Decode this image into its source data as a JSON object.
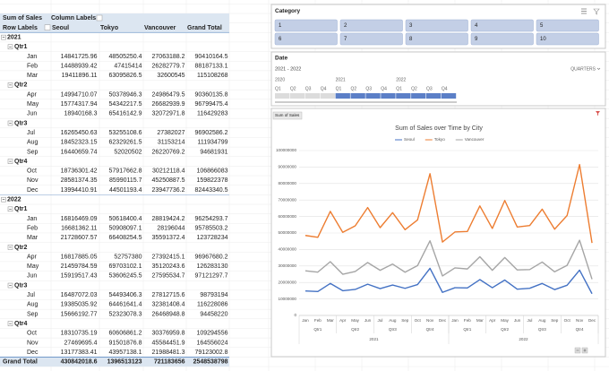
{
  "pivot_table": {
    "corner": "Sum of Sales",
    "column_labels": "Column Labels",
    "row_labels": "Row Labels",
    "columns": [
      "Seoul",
      "Tokyo",
      "Vancouver",
      "Grand Total"
    ],
    "years": [
      {
        "label": "2021",
        "quarters": [
          {
            "label": "Qtr1",
            "months": [
              {
                "label": "Jan",
                "values": [
                  14841725.96,
                  48505250.4,
                  27063188.2,
                  90410164.5
                ]
              },
              {
                "label": "Feb",
                "values": [
                  14488939.42,
                  47415414,
                  26282779.7,
                  88187133.1
                ]
              },
              {
                "label": "Mar",
                "values": [
                  19411896.11,
                  63095826.5,
                  32600545,
                  115108268
                ]
              }
            ]
          },
          {
            "label": "Qtr2",
            "months": [
              {
                "label": "Apr",
                "values": [
                  14994710.07,
                  50378946.3,
                  24986479.5,
                  90360135.8
                ]
              },
              {
                "label": "May",
                "values": [
                  15774317.94,
                  54342217.5,
                  26682939.9,
                  96799475.4
                ]
              },
              {
                "label": "Jun",
                "values": [
                  18940168.3,
                  65416142.9,
                  32072971.8,
                  116429283
                ]
              }
            ]
          },
          {
            "label": "Qtr3",
            "months": [
              {
                "label": "Jul",
                "values": [
                  16265450.63,
                  53255108.6,
                  27382027,
                  96902586.2
                ]
              },
              {
                "label": "Aug",
                "values": [
                  18452323.15,
                  62329261.5,
                  31153214,
                  111934799
                ]
              },
              {
                "label": "Sep",
                "values": [
                  16440659.74,
                  52020502,
                  26220769.2,
                  94681931
                ]
              }
            ]
          },
          {
            "label": "Qtr4",
            "months": [
              {
                "label": "Oct",
                "values": [
                  18736301.42,
                  57917662.8,
                  30212118.4,
                  106866083
                ]
              },
              {
                "label": "Nov",
                "values": [
                  28581374.35,
                  85990115.7,
                  45250887.5,
                  159822378
                ]
              },
              {
                "label": "Dec",
                "values": [
                  13994410.91,
                  44501193.4,
                  23947736.2,
                  82443340.5
                ]
              }
            ]
          }
        ]
      },
      {
        "label": "2022",
        "quarters": [
          {
            "label": "Qtr1",
            "months": [
              {
                "label": "Jan",
                "values": [
                  16816469.09,
                  50618400.4,
                  28819424.2,
                  96254293.7
                ]
              },
              {
                "label": "Feb",
                "values": [
                  16681362.11,
                  50908097.1,
                  28196044,
                  95785503.2
                ]
              },
              {
                "label": "Mar",
                "values": [
                  21728607.57,
                  66408254.5,
                  35591372.4,
                  123728234
                ]
              }
            ]
          },
          {
            "label": "Qtr2",
            "months": [
              {
                "label": "Apr",
                "values": [
                  16817885.05,
                  52757380,
                  27392415.1,
                  96967680.2
                ]
              },
              {
                "label": "May",
                "values": [
                  21459784.59,
                  69703102.1,
                  35120243.6,
                  126283130
                ]
              },
              {
                "label": "Jun",
                "values": [
                  15919517.43,
                  53606245.5,
                  27595534.7,
                  97121297.7
                ]
              }
            ]
          },
          {
            "label": "Qtr3",
            "months": [
              {
                "label": "Jul",
                "values": [
                  16487072.03,
                  54493406.3,
                  27812715.6,
                  98793194
                ]
              },
              {
                "label": "Aug",
                "values": [
                  19385035.92,
                  64461641.4,
                  32381408.4,
                  116228086
                ]
              },
              {
                "label": "Sep",
                "values": [
                  15666192.77,
                  52323078.3,
                  26468948.8,
                  94458220
                ]
              }
            ]
          },
          {
            "label": "Qtr4",
            "months": [
              {
                "label": "Oct",
                "values": [
                  18310735.19,
                  60606861.2,
                  30376959.8,
                  109294556
                ]
              },
              {
                "label": "Nov",
                "values": [
                  27469695.4,
                  91501876.8,
                  45584451.9,
                  164556024
                ]
              },
              {
                "label": "Dec",
                "values": [
                  13177383.41,
                  43957138.1,
                  21988481.3,
                  79123002.8
                ]
              }
            ]
          }
        ]
      }
    ],
    "grand_total": {
      "label": "Grand Total",
      "values": [
        430842018.6,
        1396513123,
        721183656,
        2548538798
      ]
    }
  },
  "slicer": {
    "title": "Category",
    "items": [
      "1",
      "2",
      "3",
      "4",
      "5",
      "6",
      "7",
      "8",
      "9",
      "10"
    ]
  },
  "timeline": {
    "title": "Date",
    "range": "2021 - 2022",
    "level": "QUARTERS",
    "years": [
      {
        "label": "2020",
        "quarters": [
          "Q1",
          "Q2",
          "Q3",
          "Q4"
        ],
        "selected": false
      },
      {
        "label": "2021",
        "quarters": [
          "Q1",
          "Q2",
          "Q3",
          "Q4"
        ],
        "selected": true
      },
      {
        "label": "2022",
        "quarters": [
          "Q1",
          "Q2",
          "Q3",
          "Q4"
        ],
        "selected": true
      }
    ]
  },
  "chart_data": {
    "type": "line",
    "title": "Sum of Sales over Time by City",
    "field_button": "Sum of Sales",
    "categories": [
      "Jan",
      "Feb",
      "Mar",
      "Apr",
      "May",
      "Jun",
      "Jul",
      "Aug",
      "Sep",
      "Oct",
      "Nov",
      "Dec",
      "Jan",
      "Feb",
      "Mar",
      "Apr",
      "May",
      "Jun",
      "Jul",
      "Aug",
      "Sep",
      "Oct",
      "Nov",
      "Dec"
    ],
    "groups": [
      {
        "label": "2021",
        "quarters": [
          "Qtr1",
          "Qtr2",
          "Qtr3",
          "Qtr4"
        ]
      },
      {
        "label": "2022",
        "quarters": [
          "Qtr1",
          "Qtr2",
          "Qtr3",
          "Qtr4"
        ]
      }
    ],
    "series": [
      {
        "name": "Seoul",
        "color": "#4472c4",
        "values": [
          14841725.96,
          14488939.42,
          19411896.11,
          14994710.07,
          15774317.94,
          18940168.3,
          16265450.63,
          18452323.15,
          16440659.74,
          18736301.42,
          28581374.35,
          13994410.91,
          16816469.09,
          16681362.11,
          21728607.57,
          16817885.05,
          21459784.59,
          15919517.43,
          16487072.03,
          19385035.92,
          15666192.77,
          18310735.19,
          27469695.4,
          13177383.41
        ]
      },
      {
        "name": "Tokyo",
        "color": "#ed7d31",
        "values": [
          48505250.4,
          47415414,
          63095826.5,
          50378946.3,
          54342217.5,
          65416142.9,
          53255108.6,
          62329261.5,
          52020502,
          57917662.8,
          85990115.7,
          44501193.4,
          50618400.4,
          50908097.1,
          66408254.5,
          52757380,
          69703102.1,
          53606245.5,
          54493406.3,
          64461641.4,
          52323078.3,
          60606861.2,
          91501876.8,
          43957138.1
        ]
      },
      {
        "name": "Vancouver",
        "color": "#a5a5a5",
        "values": [
          27063188.2,
          26282779.7,
          32600545,
          24986479.5,
          26682939.9,
          32072971.8,
          27382027,
          31153214,
          26220769.2,
          30212118.4,
          45250887.5,
          23947736.2,
          28819424.2,
          28196044,
          35591372.4,
          27392415.1,
          35120243.6,
          27595534.7,
          27812715.6,
          32381408.4,
          26468948.8,
          30376959.8,
          45584451.9,
          21988481.3
        ]
      }
    ],
    "ylim": [
      0,
      100000000
    ],
    "yticks": [
      0,
      10000000,
      20000000,
      30000000,
      40000000,
      50000000,
      60000000,
      70000000,
      80000000,
      90000000,
      100000000
    ],
    "grid": true,
    "legend": "top"
  }
}
